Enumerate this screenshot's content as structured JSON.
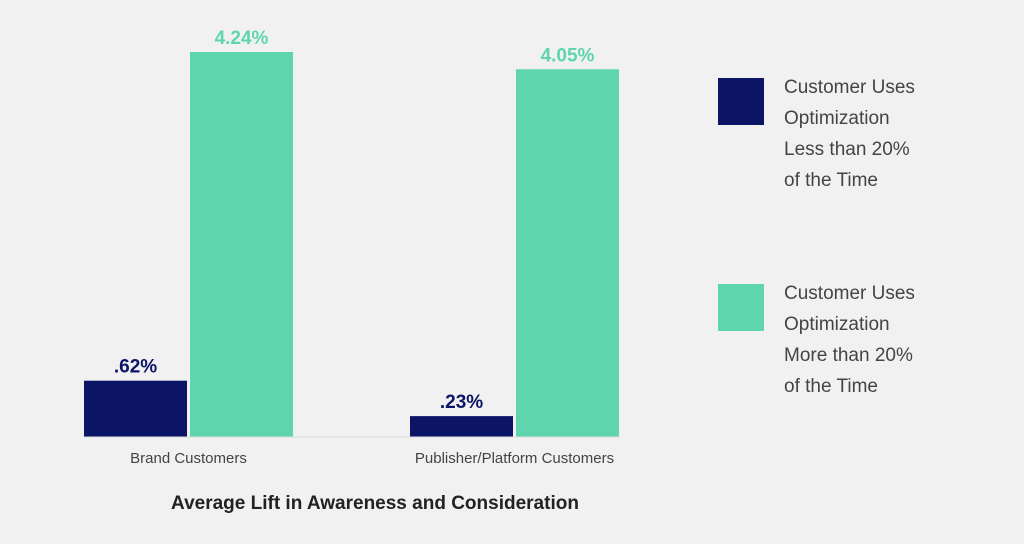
{
  "chart_data": {
    "type": "bar",
    "categories": [
      "Brand Customers",
      "Publisher/Platform Customers"
    ],
    "series": [
      {
        "name": "Customer Uses Optimization Less than 20% of the Time",
        "legend_lines": [
          "Customer Uses",
          "Optimization",
          "Less than 20%",
          "of the Time"
        ],
        "values": [
          0.62,
          0.23
        ],
        "labels": [
          ".62%",
          ".23%"
        ],
        "color": "#0c1466"
      },
      {
        "name": "Customer Uses Optimization More than 20% of the Time",
        "legend_lines": [
          "Customer Uses",
          "Optimization",
          "More than 20%",
          "of the Time"
        ],
        "values": [
          4.24,
          4.05
        ],
        "labels": [
          "4.24%",
          "4.05%"
        ],
        "color": "#5fd5ae"
      }
    ],
    "xlabel": "Average Lift in Awareness and Consideration",
    "ylabel": "",
    "ylim": [
      0,
      4.24
    ],
    "grid": false,
    "legend_position": "right"
  }
}
